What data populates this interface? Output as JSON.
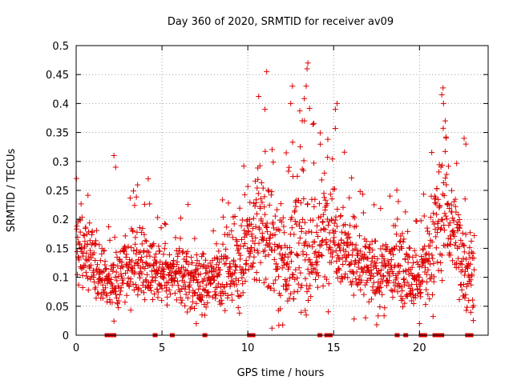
{
  "chart_data": {
    "type": "scatter",
    "title": "Day 360 of 2020, SRMTID for receiver av09",
    "xlabel": "GPS time / hours",
    "ylabel": "SRMTID / TECUs",
    "xlim": [
      0,
      24
    ],
    "ylim": [
      0,
      0.5
    ],
    "xticks": [
      0,
      5,
      10,
      15,
      20
    ],
    "xtick_labels": [
      "0",
      "5",
      "10",
      "15",
      "20"
    ],
    "yticks": [
      0,
      0.05,
      0.1,
      0.15,
      0.2,
      0.25,
      0.3,
      0.35,
      0.4,
      0.45,
      0.5
    ],
    "ytick_labels": [
      "0",
      "0.05",
      "0.1",
      "0.15",
      "0.2",
      "0.25",
      "0.3",
      "0.35",
      "0.4",
      "0.45",
      "0.5"
    ],
    "grid": true,
    "marker": "plus",
    "color": "#dd0000",
    "envelope_hours": [
      0,
      0.5,
      1,
      1.5,
      2,
      2.5,
      3,
      3.5,
      4,
      4.5,
      5,
      5.5,
      6,
      6.5,
      7,
      7.5,
      8,
      8.5,
      9,
      9.5,
      10,
      10.5,
      11,
      11.5,
      12,
      12.5,
      13,
      13.5,
      14,
      14.5,
      15,
      15.5,
      16,
      16.5,
      17,
      17.5,
      18,
      18.5,
      19,
      19.5,
      20,
      20.5,
      21,
      21.5,
      22,
      22.5,
      23
    ],
    "envelope_median": [
      0.16,
      0.15,
      0.12,
      0.1,
      0.09,
      0.1,
      0.12,
      0.13,
      0.12,
      0.11,
      0.1,
      0.1,
      0.1,
      0.1,
      0.09,
      0.09,
      0.1,
      0.11,
      0.12,
      0.13,
      0.14,
      0.19,
      0.17,
      0.15,
      0.14,
      0.13,
      0.16,
      0.15,
      0.15,
      0.18,
      0.19,
      0.16,
      0.14,
      0.12,
      0.11,
      0.1,
      0.11,
      0.12,
      0.12,
      0.09,
      0.1,
      0.12,
      0.18,
      0.22,
      0.18,
      0.13,
      0.11
    ],
    "envelope_spread": [
      0.04,
      0.04,
      0.04,
      0.03,
      0.03,
      0.03,
      0.04,
      0.04,
      0.04,
      0.03,
      0.03,
      0.03,
      0.04,
      0.04,
      0.04,
      0.03,
      0.03,
      0.04,
      0.04,
      0.05,
      0.05,
      0.07,
      0.07,
      0.07,
      0.06,
      0.06,
      0.08,
      0.08,
      0.06,
      0.06,
      0.06,
      0.05,
      0.05,
      0.04,
      0.04,
      0.04,
      0.04,
      0.04,
      0.04,
      0.03,
      0.04,
      0.05,
      0.07,
      0.07,
      0.06,
      0.05,
      0.04
    ],
    "outliers": [
      {
        "x": 2.2,
        "y": 0.31
      },
      {
        "x": 2.3,
        "y": 0.29
      },
      {
        "x": 4.2,
        "y": 0.27
      },
      {
        "x": 11.1,
        "y": 0.455
      },
      {
        "x": 11.0,
        "y": 0.39
      },
      {
        "x": 12.6,
        "y": 0.43
      },
      {
        "x": 12.5,
        "y": 0.4
      },
      {
        "x": 13.5,
        "y": 0.47
      },
      {
        "x": 13.45,
        "y": 0.46
      },
      {
        "x": 13.4,
        "y": 0.43
      },
      {
        "x": 13.3,
        "y": 0.37
      },
      {
        "x": 15.2,
        "y": 0.4
      },
      {
        "x": 15.1,
        "y": 0.39
      },
      {
        "x": 21.3,
        "y": 0.415
      },
      {
        "x": 21.4,
        "y": 0.4
      },
      {
        "x": 21.5,
        "y": 0.37
      },
      {
        "x": 22.6,
        "y": 0.34
      },
      {
        "x": 22.7,
        "y": 0.33
      },
      {
        "x": 7.0,
        "y": 0.02
      },
      {
        "x": 20.0,
        "y": 0.02
      }
    ],
    "baseline_markers_hours": [
      1.8,
      2.0,
      2.2,
      4.6,
      5.6,
      7.5,
      10.1,
      10.3,
      14.2,
      14.6,
      14.8,
      18.7,
      19.2,
      20.1,
      20.3,
      20.9,
      21.1,
      21.3,
      22.8,
      23.0
    ]
  }
}
